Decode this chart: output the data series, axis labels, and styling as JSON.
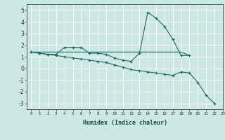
{
  "xlabel": "Humidex (Indice chaleur)",
  "ylabel": "",
  "xlim": [
    -0.5,
    23
  ],
  "ylim": [
    -3.5,
    5.5
  ],
  "yticks": [
    -3,
    -2,
    -1,
    0,
    1,
    2,
    3,
    4,
    5
  ],
  "xticks": [
    0,
    1,
    2,
    3,
    4,
    5,
    6,
    7,
    8,
    9,
    10,
    11,
    12,
    13,
    14,
    15,
    16,
    17,
    18,
    19,
    20,
    21,
    22,
    23
  ],
  "bg_color": "#cce8e4",
  "grid_color": "#ffffff",
  "line_color": "#1a6e64",
  "line1_x": [
    0,
    1,
    2,
    3,
    4,
    5,
    6,
    7,
    8,
    9,
    10,
    11,
    12,
    13,
    14,
    15,
    16,
    17,
    18,
    19
  ],
  "line1_y": [
    1.4,
    1.3,
    1.2,
    1.2,
    1.8,
    1.8,
    1.8,
    1.3,
    1.3,
    1.2,
    0.9,
    0.7,
    0.6,
    1.3,
    4.8,
    4.3,
    3.6,
    2.5,
    1.1,
    1.1
  ],
  "line2_x": [
    0,
    1,
    2,
    3,
    4,
    5,
    6,
    7,
    8,
    9,
    10,
    11,
    12,
    13,
    14,
    15,
    16,
    17,
    18,
    19
  ],
  "line2_y": [
    1.4,
    1.4,
    1.4,
    1.4,
    1.4,
    1.4,
    1.4,
    1.4,
    1.4,
    1.4,
    1.4,
    1.4,
    1.4,
    1.4,
    1.4,
    1.4,
    1.4,
    1.4,
    1.4,
    1.1
  ],
  "line3_x": [
    0,
    1,
    2,
    3,
    4,
    5,
    6,
    7,
    8,
    9,
    10,
    11,
    12,
    13,
    14,
    15,
    16,
    17,
    18,
    19,
    20,
    21,
    22
  ],
  "line3_y": [
    1.4,
    1.3,
    1.2,
    1.1,
    1.0,
    0.9,
    0.8,
    0.7,
    0.6,
    0.5,
    0.3,
    0.1,
    -0.1,
    -0.2,
    -0.3,
    -0.4,
    -0.5,
    -0.6,
    -0.3,
    -0.4,
    -1.2,
    -2.3,
    -3.0
  ]
}
